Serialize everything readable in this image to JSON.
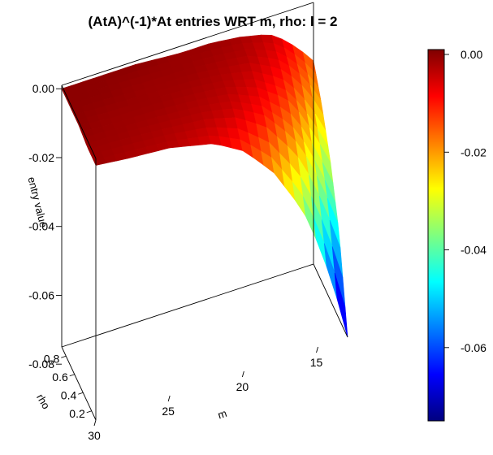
{
  "chart_data": {
    "type": "surface3d",
    "title": "(AtA)^(-1)*At entries WRT m, rho: l = 2",
    "xlabel": "m",
    "ylabel": "rho",
    "zlabel": "entry value",
    "x_ticks": [
      30,
      25,
      20,
      15
    ],
    "y_ticks": [
      0.2,
      0.4,
      0.6,
      0.8
    ],
    "z_ticks": [
      0.0,
      -0.02,
      -0.04,
      -0.06,
      -0.08
    ],
    "z_tick_labels": [
      "0.00",
      "-0.02",
      "-0.04",
      "-0.06",
      "-0.08"
    ],
    "xlim": [
      13,
      30
    ],
    "ylim": [
      0.1,
      0.9
    ],
    "zlim": [
      -0.075,
      0.001
    ],
    "colorbar": {
      "min": -0.075,
      "max": 0.001,
      "ticks": [
        0.0,
        -0.02,
        -0.04,
        -0.06
      ],
      "tick_labels": [
        "0.00",
        "-0.02",
        "-0.04",
        "-0.06"
      ],
      "colormap": [
        "#00007f",
        "#0000ff",
        "#007fff",
        "#00ffff",
        "#7fff7f",
        "#ffff00",
        "#ff7f00",
        "#ff0000",
        "#7f0000"
      ]
    },
    "surface": {
      "m_values": [
        13,
        14,
        15,
        16,
        18,
        20,
        22,
        25,
        28,
        30
      ],
      "rho_values": [
        0.1,
        0.3,
        0.5,
        0.7,
        0.9
      ],
      "z": [
        [
          -0.075,
          -0.058,
          -0.045,
          -0.034,
          -0.02,
          -0.011,
          -0.006,
          -0.003,
          -0.002,
          -0.001
        ],
        [
          -0.05,
          -0.038,
          -0.028,
          -0.02,
          -0.01,
          -0.005,
          -0.003,
          -0.002,
          -0.001,
          -0.001
        ],
        [
          -0.035,
          -0.026,
          -0.018,
          -0.012,
          -0.006,
          -0.003,
          -0.002,
          -0.001,
          -0.001,
          0.0
        ],
        [
          -0.024,
          -0.016,
          -0.011,
          -0.007,
          -0.003,
          -0.002,
          -0.001,
          -0.001,
          0.0,
          0.0
        ],
        [
          -0.016,
          -0.011,
          -0.007,
          -0.004,
          -0.002,
          -0.001,
          -0.001,
          0.0,
          0.0,
          0.0
        ]
      ]
    }
  }
}
